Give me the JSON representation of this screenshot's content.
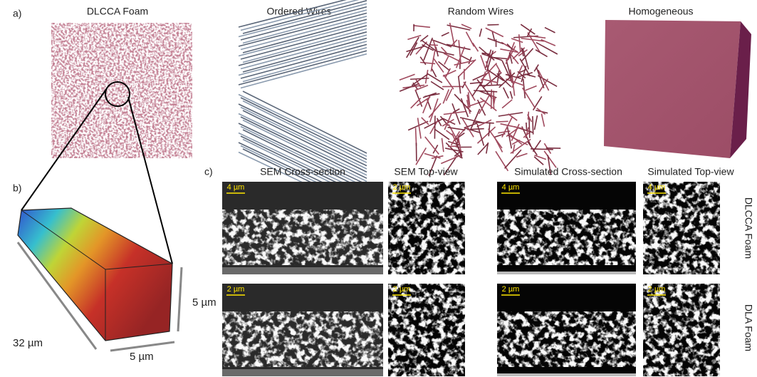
{
  "panels": {
    "a": {
      "label": "a)",
      "titles": [
        "DLCCA Foam",
        "Ordered Wires",
        "Random Wires",
        "Homogeneous"
      ]
    },
    "b": {
      "label": "b)",
      "dimensions": [
        "32 µm",
        "5 µm",
        "5 µm"
      ]
    },
    "c": {
      "label": "c)",
      "columns": [
        "SEM Cross-section",
        "SEM  Top-view",
        "Simulated Cross-section",
        "Simulated Top-view"
      ],
      "rows": [
        {
          "label": "DLCCA Foam",
          "scale_bars": [
            "4 µm",
            "2 µm",
            "4 µm",
            "4 µm"
          ]
        },
        {
          "label": "DLA Foam",
          "scale_bars": [
            "2 µm",
            "2 µm",
            "2 µm",
            "2 µm"
          ]
        }
      ]
    }
  }
}
